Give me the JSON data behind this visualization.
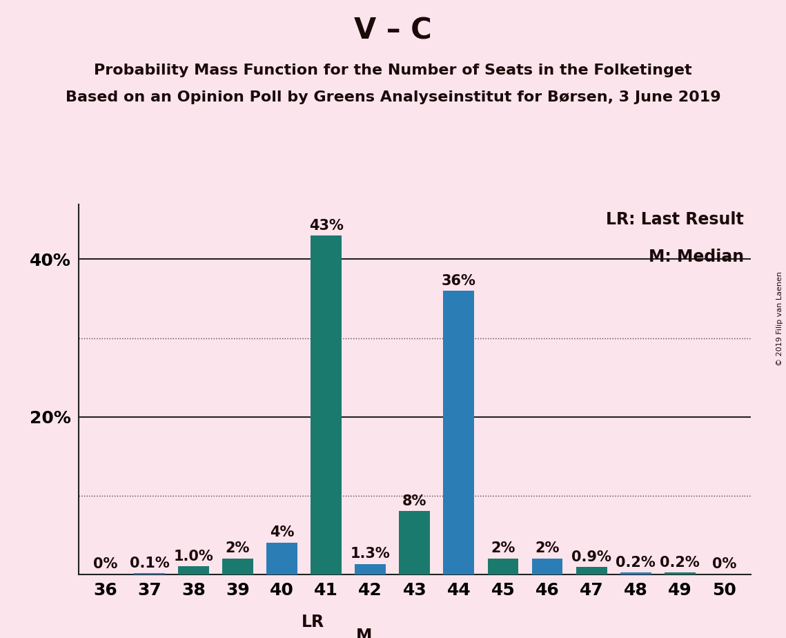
{
  "title": "V – C",
  "subtitle1": "Probability Mass Function for the Number of Seats in the Folketinget",
  "subtitle2": "Based on an Opinion Poll by Greens Analyseinstitut for Børsen, 3 June 2019",
  "copyright": "© 2019 Filip van Laenen",
  "seats": [
    36,
    37,
    38,
    39,
    40,
    41,
    42,
    43,
    44,
    45,
    46,
    47,
    48,
    49,
    50
  ],
  "values": [
    0.0,
    0.1,
    1.0,
    2.0,
    4.0,
    43.0,
    1.3,
    8.0,
    36.0,
    2.0,
    2.0,
    0.9,
    0.2,
    0.2,
    0.0
  ],
  "labels": [
    "0%",
    "0.1%",
    "1.0%",
    "2%",
    "4%",
    "43%",
    "1.3%",
    "8%",
    "36%",
    "2%",
    "2%",
    "0.9%",
    "0.2%",
    "0.2%",
    "0%"
  ],
  "colors": [
    "#1a7a6e",
    "#2b7db5",
    "#1a7a6e",
    "#1a7a6e",
    "#2b7db5",
    "#1a7a6e",
    "#2b7db5",
    "#1a7a6e",
    "#2b7db5",
    "#1a7a6e",
    "#2b7db5",
    "#1a7a6e",
    "#2b7db5",
    "#1a7a6e",
    "#2b7db5"
  ],
  "last_result": 41,
  "median": 42,
  "lr_label": "LR",
  "m_label": "M",
  "legend_lr": "LR: Last Result",
  "legend_m": "M: Median",
  "background_color": "#fce4ec",
  "solid_hlines": [
    20,
    40
  ],
  "dotted_hlines": [
    10,
    30
  ],
  "ytick_positions": [
    20,
    40
  ],
  "ytick_labels": [
    "20%",
    "40%"
  ],
  "ylim": [
    0,
    47
  ],
  "xlim": [
    35.4,
    50.6
  ],
  "bar_width": 0.7,
  "title_fontsize": 30,
  "subtitle_fontsize": 16,
  "tick_fontsize": 18,
  "legend_fontsize": 17,
  "annot_fontsize": 15,
  "lr_m_fontsize": 17
}
